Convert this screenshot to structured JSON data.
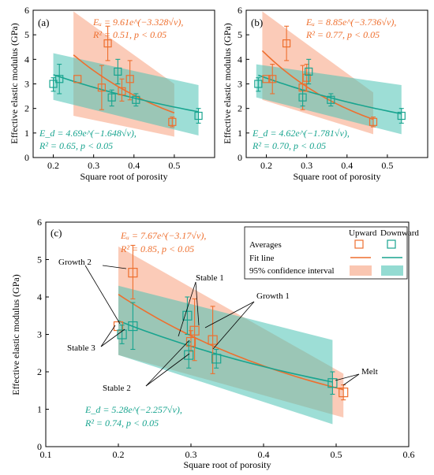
{
  "colors": {
    "upward": "#ee6f2e",
    "downward": "#18a48f",
    "upward_band": "#f7a07d",
    "downward_band": "#4cc3b4",
    "overlap_band": "#a6a593",
    "axis": "#000000"
  },
  "chart_data": [
    {
      "panel": "(a)",
      "type": "scatter",
      "ylabel": "Effective elastic modulus (GPa)",
      "xlabel": "Square root of porosity",
      "xlim": [
        0.15,
        0.6
      ],
      "ylim": [
        0,
        6
      ],
      "xticks": [
        "0.2",
        "0.3",
        "0.4",
        "0.5"
      ],
      "yticks": [
        "0",
        "1",
        "2",
        "3",
        "4",
        "5",
        "6"
      ],
      "upward_points": [
        {
          "x": 0.26,
          "y": 3.2,
          "lo": 3.2,
          "hi": 3.2
        },
        {
          "x": 0.32,
          "y": 2.85,
          "lo": 1.95,
          "hi": 3.75
        },
        {
          "x": 0.335,
          "y": 4.65,
          "lo": 3.95,
          "hi": 5.35
        },
        {
          "x": 0.37,
          "y": 2.7,
          "lo": 2.3,
          "hi": 3.2
        },
        {
          "x": 0.39,
          "y": 3.2,
          "lo": 2.35,
          "hi": 3.95
        },
        {
          "x": 0.495,
          "y": 1.45,
          "lo": 1.25,
          "hi": 1.65
        }
      ],
      "downward_points": [
        {
          "x": 0.2,
          "y": 3.0,
          "lo": 2.7,
          "hi": 3.25
        },
        {
          "x": 0.215,
          "y": 3.2,
          "lo": 2.6,
          "hi": 3.8
        },
        {
          "x": 0.345,
          "y": 2.45,
          "lo": 2.1,
          "hi": 2.75
        },
        {
          "x": 0.36,
          "y": 3.5,
          "lo": 3.0,
          "hi": 4.0
        },
        {
          "x": 0.405,
          "y": 2.35,
          "lo": 2.1,
          "hi": 2.6
        },
        {
          "x": 0.56,
          "y": 1.7,
          "lo": 1.4,
          "hi": 2.0
        }
      ],
      "upward_fit": {
        "a": 9.61,
        "b": 3.328,
        "xrange": [
          0.25,
          0.5
        ]
      },
      "downward_fit": {
        "a": 4.69,
        "b": 1.648,
        "xrange": [
          0.2,
          0.56
        ]
      },
      "upward_band": {
        "x": [
          0.25,
          0.5
        ],
        "upper": [
          5.95,
          3.0
        ],
        "lower": [
          1.7,
          0.85
        ]
      },
      "downward_band": {
        "x": [
          0.2,
          0.56
        ],
        "upper": [
          4.25,
          2.95
        ],
        "lower": [
          2.35,
          0.9
        ]
      },
      "annotations": {
        "upward_eq": "Eᵤ = 9.61e^(−3.328√ν),",
        "upward_stats": "R² = 0.51, p < 0.05",
        "downward_eq": "E_d = 4.69e^(−1.648√ν),",
        "downward_stats": "R² = 0.65, p < 0.05"
      }
    },
    {
      "panel": "(b)",
      "type": "scatter",
      "ylabel": "Effective elastic modulus (GPa)",
      "xlabel": "Square root of porosity",
      "xlim": [
        0.15,
        0.6
      ],
      "ylim": [
        0,
        6
      ],
      "xticks": [
        "0.2",
        "0.3",
        "0.4",
        "0.5"
      ],
      "yticks": [
        "0",
        "1",
        "2",
        "3",
        "4",
        "5",
        "6"
      ],
      "upward_points": [
        {
          "x": 0.2,
          "y": 3.2,
          "lo": 3.2,
          "hi": 3.2
        },
        {
          "x": 0.215,
          "y": 3.2,
          "lo": 2.6,
          "hi": 3.8
        },
        {
          "x": 0.25,
          "y": 4.65,
          "lo": 3.95,
          "hi": 5.35
        },
        {
          "x": 0.29,
          "y": 2.85,
          "lo": 1.95,
          "hi": 3.75
        },
        {
          "x": 0.3,
          "y": 3.25,
          "lo": 2.7,
          "hi": 3.8
        },
        {
          "x": 0.465,
          "y": 1.45,
          "lo": 1.25,
          "hi": 1.65
        }
      ],
      "downward_points": [
        {
          "x": 0.18,
          "y": 3.0,
          "lo": 2.7,
          "hi": 3.25
        },
        {
          "x": 0.29,
          "y": 2.45,
          "lo": 2.1,
          "hi": 2.75
        },
        {
          "x": 0.305,
          "y": 3.5,
          "lo": 3.0,
          "hi": 4.0
        },
        {
          "x": 0.36,
          "y": 2.35,
          "lo": 2.1,
          "hi": 2.6
        },
        {
          "x": 0.535,
          "y": 1.7,
          "lo": 1.4,
          "hi": 2.0
        }
      ],
      "upward_fit": {
        "a": 8.85,
        "b": 3.736,
        "xrange": [
          0.19,
          0.465
        ]
      },
      "downward_fit": {
        "a": 4.62,
        "b": 1.781,
        "xrange": [
          0.18,
          0.535
        ]
      },
      "upward_band": {
        "x": [
          0.19,
          0.465
        ],
        "upper": [
          5.95,
          2.65
        ],
        "lower": [
          2.35,
          0.95
        ]
      },
      "downward_band": {
        "x": [
          0.175,
          0.535
        ],
        "upper": [
          3.8,
          2.95
        ],
        "lower": [
          2.45,
          0.95
        ]
      },
      "annotations": {
        "upward_eq": "Eᵤ = 8.85e^(−3.736√ν),",
        "upward_stats": "R² = 0.77, p < 0.05",
        "downward_eq": "E_d = 4.62e^(−1.781√ν),",
        "downward_stats": "R² = 0.70, p < 0.05"
      }
    },
    {
      "panel": "(c)",
      "type": "scatter",
      "ylabel": "Effective elastic modulus (GPa)",
      "xlabel": "Square root of porosity",
      "xlim": [
        0.1,
        0.6
      ],
      "ylim": [
        0,
        6
      ],
      "xticks": [
        "0.1",
        "0.2",
        "0.3",
        "0.4",
        "0.5",
        "0.6"
      ],
      "yticks": [
        "0",
        "1",
        "2",
        "3",
        "4",
        "5",
        "6"
      ],
      "upward_points": [
        {
          "x": 0.2,
          "y": 3.22,
          "lo": 3.22,
          "hi": 3.22
        },
        {
          "x": 0.22,
          "y": 4.65,
          "lo": 3.95,
          "hi": 5.38
        },
        {
          "x": 0.3,
          "y": 2.8,
          "lo": 2.55,
          "hi": 3.1
        },
        {
          "x": 0.305,
          "y": 3.1,
          "lo": 2.3,
          "hi": 3.95
        },
        {
          "x": 0.33,
          "y": 2.85,
          "lo": 1.95,
          "hi": 3.75
        },
        {
          "x": 0.51,
          "y": 1.45,
          "lo": 1.25,
          "hi": 1.65
        }
      ],
      "downward_points": [
        {
          "x": 0.205,
          "y": 3.0,
          "lo": 2.75,
          "hi": 3.25
        },
        {
          "x": 0.22,
          "y": 3.22,
          "lo": 2.6,
          "hi": 3.85
        },
        {
          "x": 0.295,
          "y": 3.5,
          "lo": 3.0,
          "hi": 4.0
        },
        {
          "x": 0.297,
          "y": 2.45,
          "lo": 2.1,
          "hi": 2.8
        },
        {
          "x": 0.335,
          "y": 2.35,
          "lo": 2.1,
          "hi": 2.6
        },
        {
          "x": 0.495,
          "y": 1.7,
          "lo": 1.4,
          "hi": 2.0
        }
      ],
      "upward_fit": {
        "a": 7.67,
        "b": 3.17,
        "xrange": [
          0.2,
          0.51
        ]
      },
      "downward_fit": {
        "a": 5.28,
        "b": 2.257,
        "xrange": [
          0.2,
          0.495
        ]
      },
      "upward_band": {
        "x": [
          0.2,
          0.51
        ],
        "upper": [
          5.35,
          1.95
        ],
        "lower": [
          2.45,
          0.78
        ]
      },
      "downward_band": {
        "x": [
          0.2,
          0.495
        ],
        "upper": [
          4.3,
          2.85
        ],
        "lower": [
          2.45,
          0.6
        ]
      },
      "annotations": {
        "upward_eq": "Eᵤ = 7.67e^(−3.17√ν),",
        "upward_stats": "R² = 0.85, p < 0.05",
        "downward_eq": "E_d = 5.28e^(−2.257√ν),",
        "downward_stats": "R² = 0.74, p < 0.05"
      },
      "legend": {
        "upward": "Upward",
        "downward": "Downward",
        "averages": "Averages",
        "fit_line": "Fit line",
        "ci": "95% confidence interval"
      },
      "labels": {
        "growth2": "Growth 2",
        "stable1": "Stable 1",
        "growth1": "Growth 1",
        "melt": "Melt",
        "stable3": "Stable 3",
        "stable2": "Stable 2"
      }
    }
  ]
}
